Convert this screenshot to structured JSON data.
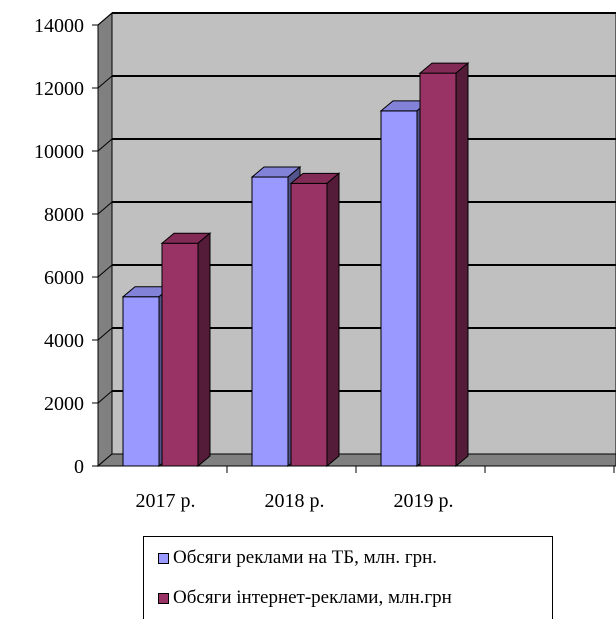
{
  "chart_data": {
    "type": "bar",
    "title": "",
    "xlabel": "",
    "ylabel": "",
    "categories": [
      "2017 р.",
      "2018 р.",
      "2019 р.",
      ""
    ],
    "series": [
      {
        "name": "Обсяги реклами на ТБ, млн. грн.",
        "values": [
          5500,
          9300,
          11400,
          null
        ],
        "color": "#9999ff"
      },
      {
        "name": "Обсяги інтернет-реклами, млн.грн",
        "values": [
          7200,
          9100,
          12600,
          null
        ],
        "color": "#993366"
      }
    ],
    "ylim": [
      0,
      14000
    ],
    "yticks": [
      0,
      2000,
      4000,
      6000,
      8000,
      10000,
      12000,
      14000
    ],
    "grid": true,
    "legend_position": "bottom",
    "style": "3d-clustered-column",
    "wall_color": "#c0c0c0"
  }
}
